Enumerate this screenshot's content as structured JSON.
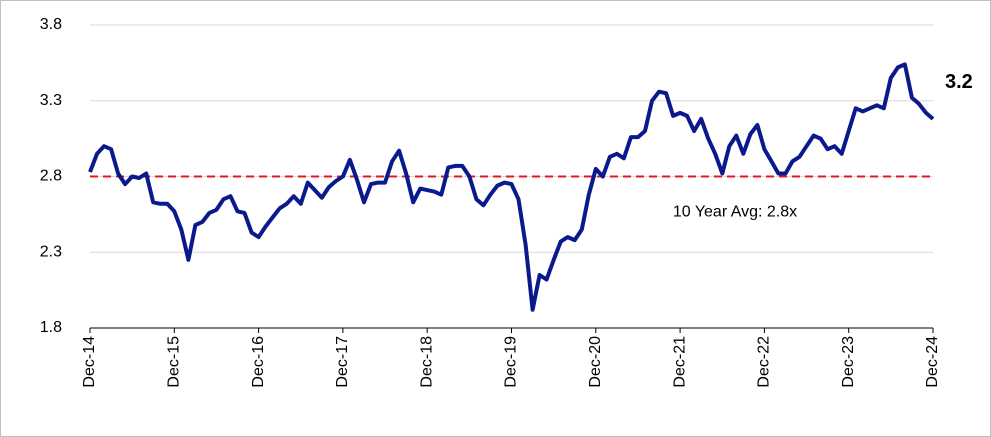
{
  "chart_data": {
    "type": "line",
    "x": [
      0,
      1,
      2,
      3,
      4,
      5,
      6,
      7,
      8,
      9,
      10,
      11,
      12,
      13,
      14,
      15,
      16,
      17,
      18,
      19,
      20,
      21,
      22,
      23,
      24,
      25,
      26,
      27,
      28,
      29,
      30,
      31,
      32,
      33,
      34,
      35,
      36,
      37,
      38,
      39,
      40,
      41,
      42,
      43,
      44,
      45,
      46,
      47,
      48,
      49,
      50,
      51,
      52,
      53,
      54,
      55,
      56,
      57,
      58,
      59,
      60,
      61,
      62,
      63,
      64,
      65,
      66,
      67,
      68,
      69,
      70,
      71,
      72,
      73,
      74,
      75,
      76,
      77,
      78,
      79,
      80,
      81,
      82,
      83,
      84,
      85,
      86,
      87,
      88,
      89,
      90,
      91,
      92,
      93,
      94,
      95,
      96,
      97,
      98,
      99,
      100,
      101,
      102,
      103,
      104,
      105,
      106,
      107,
      108,
      109,
      110,
      111,
      112,
      113,
      114,
      115,
      116,
      117,
      118,
      119,
      120
    ],
    "series": [
      {
        "color": "#0a1a8c",
        "values": [
          2.83,
          2.95,
          3.0,
          2.98,
          2.82,
          2.75,
          2.8,
          2.79,
          2.82,
          2.63,
          2.62,
          2.62,
          2.57,
          2.45,
          2.25,
          2.48,
          2.5,
          2.56,
          2.58,
          2.65,
          2.67,
          2.57,
          2.56,
          2.43,
          2.4,
          2.47,
          2.53,
          2.59,
          2.62,
          2.67,
          2.62,
          2.76,
          2.71,
          2.66,
          2.73,
          2.77,
          2.8,
          2.91,
          2.78,
          2.63,
          2.75,
          2.76,
          2.76,
          2.9,
          2.97,
          2.82,
          2.63,
          2.72,
          2.71,
          2.7,
          2.68,
          2.86,
          2.87,
          2.87,
          2.8,
          2.65,
          2.61,
          2.68,
          2.74,
          2.76,
          2.75,
          2.65,
          2.35,
          1.92,
          2.15,
          2.12,
          2.25,
          2.37,
          2.4,
          2.38,
          2.45,
          2.68,
          2.85,
          2.8,
          2.93,
          2.95,
          2.92,
          3.06,
          3.06,
          3.1,
          3.3,
          3.36,
          3.35,
          3.2,
          3.22,
          3.2,
          3.1,
          3.18,
          3.05,
          2.95,
          2.82,
          3.0,
          3.07,
          2.95,
          3.08,
          3.14,
          2.98,
          2.9,
          2.82,
          2.82,
          2.9,
          2.93,
          3.0,
          3.07,
          3.05,
          2.98,
          3.0,
          2.95,
          3.1,
          3.25,
          3.23,
          3.25,
          3.27,
          3.25,
          3.45,
          3.52,
          3.54,
          3.32,
          3.28,
          3.22,
          3.18
        ]
      }
    ],
    "xlim": [
      0,
      120
    ],
    "xticks": [
      {
        "value": 0,
        "label": "Dec-14"
      },
      {
        "value": 12,
        "label": "Dec-15"
      },
      {
        "value": 24,
        "label": "Dec-16"
      },
      {
        "value": 36,
        "label": "Dec-17"
      },
      {
        "value": 48,
        "label": "Dec-18"
      },
      {
        "value": 60,
        "label": "Dec-19"
      },
      {
        "value": 72,
        "label": "Dec-20"
      },
      {
        "value": 84,
        "label": "Dec-21"
      },
      {
        "value": 96,
        "label": "Dec-22"
      },
      {
        "value": 108,
        "label": "Dec-23"
      },
      {
        "value": 120,
        "label": "Dec-24"
      }
    ],
    "ylim": [
      1.8,
      3.8
    ],
    "yticks": [
      1.8,
      2.3,
      2.8,
      3.3,
      3.8
    ],
    "grid": true,
    "reference_line": {
      "value": 2.8,
      "color": "#e8141c",
      "label": "10 Year Avg: 2.8x"
    },
    "end_label": "3.2"
  }
}
